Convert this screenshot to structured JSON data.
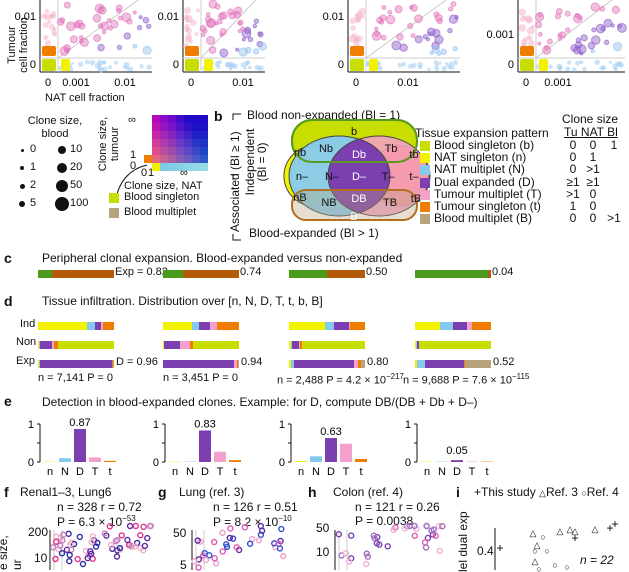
{
  "colors": {
    "b": "#c8de00",
    "n": "#f2f200",
    "N": "#86c9f0",
    "D": "#7c3fb0",
    "T": "#f4a0cc",
    "t": "#f07d00",
    "B": "#b8a47c",
    "green": "#4a9a1e",
    "brown": "#b45a08",
    "grid": "#cccccc"
  },
  "panel_a": {
    "xlabel": "NAT cell fraction",
    "ylabel_line1": "Tumour",
    "ylabel_line2": "cell fraction",
    "plots": [
      {
        "xticks": [
          "0",
          "0.001",
          "0.01"
        ],
        "yticks": [
          "0",
          "0.01"
        ]
      },
      {
        "xticks": [
          "0",
          "0.01"
        ],
        "yticks": [
          "0",
          "0.01"
        ]
      },
      {
        "xticks": [
          "0",
          "0.01"
        ],
        "yticks": [
          "0",
          "0.01"
        ]
      },
      {
        "xticks": [
          "0",
          "0.001"
        ],
        "yticks": [
          "0",
          "0.001"
        ]
      }
    ],
    "legend_size_title_1": "Clone size,",
    "legend_size_title_2": "blood",
    "size_legend": [
      "0",
      "1",
      "2",
      "5",
      "10",
      "20",
      "50",
      "100"
    ],
    "colormap_ylabel_1": "Clone size,",
    "colormap_ylabel_2": "tumour",
    "colormap_xlabel": "Clone size, NAT",
    "colormap_ticks_y": [
      "∞",
      "1",
      "0"
    ],
    "colormap_ticks_x": [
      "0",
      "1",
      "∞"
    ],
    "blood_singleton": "Blood singleton",
    "blood_multiplet": "Blood multiplet"
  },
  "panel_b": {
    "label": "b",
    "top_label": "Blood non-expanded (Bl = 1)",
    "bottom_label": "Blood-expanded (Bl > 1)",
    "side_assoc": "Associated (Bl ≥ 1)",
    "side_indep_1": "Independent",
    "side_indep_2": "(Bl = 0)",
    "venn": {
      "b": "b",
      "nb": "nb",
      "Nb": "Nb",
      "Db": "Db",
      "Tb": "Tb",
      "tb": "tb",
      "n_": "n–",
      "N_": "N–",
      "D_": "D–",
      "T_": "T–",
      "t_": "t–",
      "nB": "nB",
      "NB": "NB",
      "DB": "DB",
      "TB": "TB",
      "tB": "tB",
      "B": "B"
    },
    "legend_title": "Tissue expansion pattern",
    "clone_size_title": "Clone size",
    "clone_cols": [
      "Tu",
      "NAT",
      "Bl"
    ],
    "patterns": [
      {
        "key": "b",
        "label": "Blood singleton (b)",
        "tu": "0",
        "nat": "0",
        "bl": "1"
      },
      {
        "key": "n",
        "label": "NAT singleton (n)",
        "tu": "0",
        "nat": "1",
        "bl": ""
      },
      {
        "key": "N",
        "label": "NAT multiplet (N)",
        "tu": "0",
        "nat": ">1",
        "bl": ""
      },
      {
        "key": "D",
        "label": "Dual expanded (D)",
        "tu": "≥1",
        "nat": "≥1",
        "bl": ""
      },
      {
        "key": "T",
        "label": "Tumour multiplet (T)",
        "tu": ">1",
        "nat": "0",
        "bl": ""
      },
      {
        "key": "t",
        "label": "Tumour singleton (t)",
        "tu": "1",
        "nat": "0",
        "bl": ""
      },
      {
        "key": "B",
        "label": "Blood multiplet (B)",
        "tu": "0",
        "nat": "0",
        "bl": ">1"
      }
    ]
  },
  "panel_c": {
    "label": "c",
    "title": "Peripheral clonal expansion.  Blood-expanded versus non-expanded",
    "values": [
      {
        "label": "Exp = 0.82",
        "exp": 0.82
      },
      {
        "label": "0.74",
        "exp": 0.74
      },
      {
        "label": "0.50",
        "exp": 0.5
      },
      {
        "label": "0.04",
        "exp": 0.04
      }
    ]
  },
  "panel_d": {
    "label": "d",
    "title": "Tissue infiltration.  Distribution over [n, N, D, T, t, b, B]",
    "row_labels": [
      "Ind",
      "Non",
      "Exp"
    ],
    "order": [
      "n",
      "N",
      "D",
      "T",
      "t",
      "b",
      "B"
    ],
    "groups": [
      {
        "Ind": [
          0.64,
          0.1,
          0.08,
          0.03,
          0.14,
          0,
          0
        ],
        "Non": [
          0.01,
          0.02,
          0.16,
          0.02,
          0.06,
          0.73,
          0
        ],
        "Exp": [
          0.01,
          0.01,
          0.96,
          0.0,
          0.01,
          0,
          0.01
        ],
        "d_label": "D = 0.96",
        "stats": "n = 7,141 P = 0",
        "n": "7,141",
        "p": "0"
      },
      {
        "Ind": [
          0.38,
          0.09,
          0.15,
          0.09,
          0.29,
          0,
          0
        ],
        "Non": [
          0.01,
          0.0,
          0.22,
          0.12,
          0.05,
          0.6,
          0
        ],
        "Exp": [
          0.0,
          0.0,
          0.94,
          0.03,
          0.02,
          0,
          0.01
        ],
        "d_label": "0.94",
        "stats": "n = 3,451 P = 0",
        "n": "3,451",
        "p": "0"
      },
      {
        "Ind": [
          0.48,
          0.11,
          0.2,
          0.01,
          0.2,
          0,
          0
        ],
        "Non": [
          0.03,
          0.01,
          0.09,
          0.02,
          0.02,
          0.83,
          0
        ],
        "Exp": [
          0.03,
          0.03,
          0.8,
          0.05,
          0.04,
          0,
          0.05
        ],
        "d_label": "0.80",
        "stats_prefix": "n = 2,488 P = 4.2 × 10",
        "stats_exp": "−217",
        "n": "2,488",
        "p": "4.2 × 10^-217"
      },
      {
        "Ind": [
          0.33,
          0.17,
          0.19,
          0.06,
          0.25,
          0,
          0
        ],
        "Non": [
          0.01,
          0.01,
          0.03,
          0.0,
          0.0,
          0.95,
          0
        ],
        "Exp": [
          0.03,
          0.1,
          0.52,
          0.0,
          0.01,
          0,
          0.34
        ],
        "d_label": "0.52",
        "stats_prefix": "n = 9,688 P = 7.6 × 10",
        "stats_exp": "−115",
        "n": "9,688",
        "p": "7.6 × 10^-115"
      }
    ]
  },
  "chart_data": [
    {
      "type": "bar",
      "title": "Detection in blood-expanded clones.  Example: for D, compute DB/(DB + Db + D–)",
      "categories": [
        "n",
        "N",
        "D",
        "T",
        "t"
      ],
      "ylim": [
        0,
        1
      ],
      "yticks": [
        "0",
        "1"
      ],
      "series": [
        {
          "name": "group1",
          "values": [
            0.0,
            0.1,
            0.87,
            0.12,
            0.03
          ],
          "label": "0.87"
        },
        {
          "name": "group2",
          "values": [
            0.01,
            0.0,
            0.83,
            0.27,
            0.05
          ],
          "label": "0.83"
        },
        {
          "name": "group3",
          "values": [
            0.02,
            0.15,
            0.63,
            0.48,
            0.08
          ],
          "label": "0.63"
        },
        {
          "name": "group4",
          "values": [
            0.0,
            0.01,
            0.05,
            0.0,
            0.0
          ],
          "label": "0.05"
        }
      ]
    }
  ],
  "panel_e": {
    "label": "e"
  },
  "panel_f": {
    "label": "f",
    "title": "Renal1–3, Lung6",
    "stats1": "n = 328 r = 0.72",
    "stats2_prefix": "P = 6.3 × 10",
    "stats2_exp": "−53",
    "yticks": [
      "200",
      "10"
    ],
    "ylabel": "e size,",
    "ylabel2": "ur"
  },
  "panel_g": {
    "label": "g",
    "title": "Lung (ref. 3)",
    "stats1": "n = 126 r = 0.51",
    "stats2_prefix": "P = 8.2 × 10",
    "stats2_exp": "−10",
    "yticks": [
      "50",
      "5"
    ]
  },
  "panel_h": {
    "label": "h",
    "title": "Colon (ref. 4)",
    "stats1": "n = 121 r = 0.26",
    "stats2": "P = 0.0038",
    "yticks": [
      "50",
      "10"
    ]
  },
  "panel_i": {
    "label": "i",
    "legend": [
      "This study",
      "Ref. 3",
      "Ref. 4"
    ],
    "ylabel": "lel dual exp",
    "ytick": "0.4",
    "n_label": "n = 22"
  }
}
